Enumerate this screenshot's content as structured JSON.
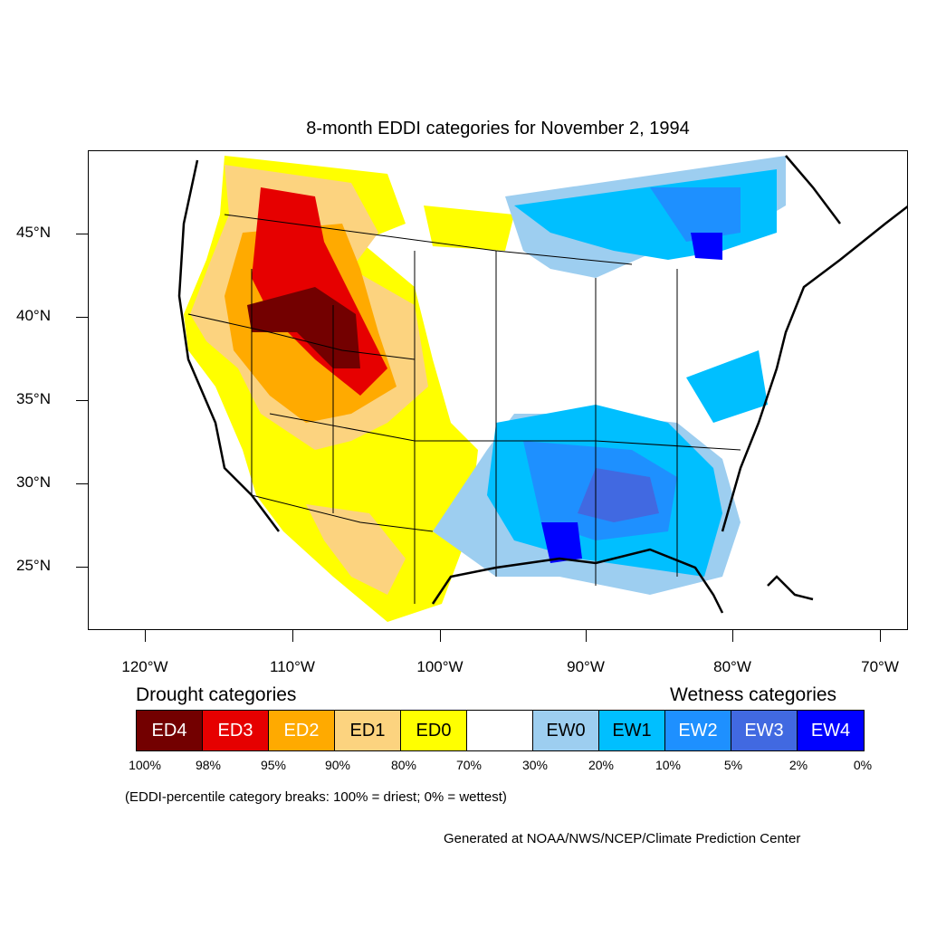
{
  "title": "8-month EDDI categories for November 2, 1994",
  "lat_labels": [
    "45°N",
    "40°N",
    "35°N",
    "30°N",
    "25°N"
  ],
  "lon_labels": [
    "120°W",
    "110°W",
    "100°W",
    "90°W",
    "80°W",
    "70°W"
  ],
  "legend": {
    "drought_heading": "Drought categories",
    "wetness_heading": "Wetness categories",
    "categories": [
      {
        "label": "ED4",
        "color": "#730000",
        "text_color": "#ffffff"
      },
      {
        "label": "ED3",
        "color": "#e60000",
        "text_color": "#ffffff"
      },
      {
        "label": "ED2",
        "color": "#ffaa00",
        "text_color": "#ffffff"
      },
      {
        "label": "ED1",
        "color": "#fcd37f",
        "text_color": "#000000"
      },
      {
        "label": "ED0",
        "color": "#ffff00",
        "text_color": "#000000"
      },
      {
        "label": "",
        "color": "#ffffff",
        "text_color": "#000000"
      },
      {
        "label": "EW0",
        "color": "#9dcef0",
        "text_color": "#000000"
      },
      {
        "label": "EW1",
        "color": "#00bfff",
        "text_color": "#000000"
      },
      {
        "label": "EW2",
        "color": "#1e90ff",
        "text_color": "#ffffff"
      },
      {
        "label": "EW3",
        "color": "#4169e1",
        "text_color": "#ffffff"
      },
      {
        "label": "EW4",
        "color": "#0000ff",
        "text_color": "#ffffff"
      }
    ],
    "percentiles": [
      "100%",
      "98%",
      "95%",
      "90%",
      "80%",
      "70%",
      "30%",
      "20%",
      "10%",
      "5%",
      "2%",
      "0%"
    ]
  },
  "note": "(EDDI-percentile category breaks: 100% = driest; 0% = wettest)",
  "credit": "Generated at NOAA/NWS/NCEP/Climate Prediction Center"
}
